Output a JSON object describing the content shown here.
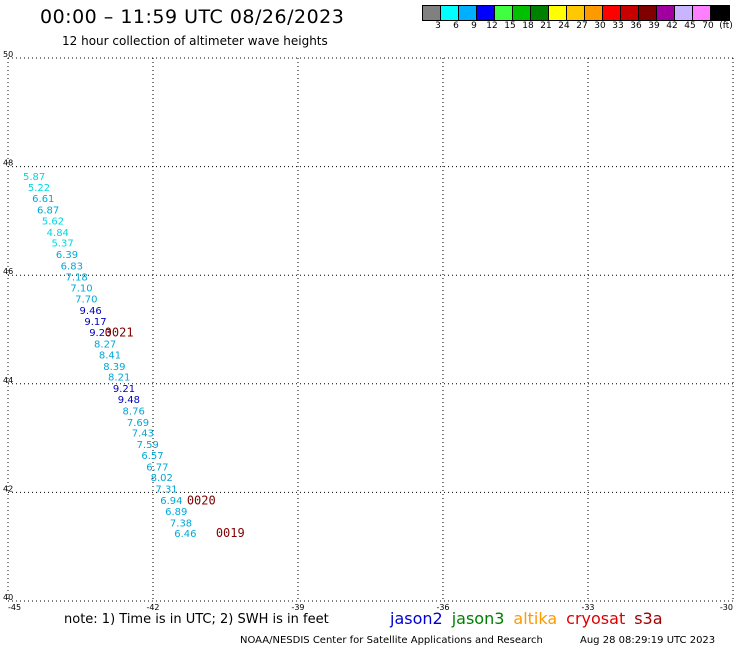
{
  "header": {
    "title": "00:00 – 11:59 UTC 08/26/2023",
    "subtitle": "12 hour collection of altimeter wave heights"
  },
  "legend": {
    "colors": [
      "#808080",
      "#00ffff",
      "#00b0ff",
      "#0000ff",
      "#40ff40",
      "#00c000",
      "#008000",
      "#ffff00",
      "#ffc800",
      "#ff9900",
      "#ff0000",
      "#c80000",
      "#800000",
      "#a000a0",
      "#c8b4ff",
      "#ff80ff",
      "#000000"
    ],
    "labels": [
      "3",
      "6",
      "9",
      "12",
      "15",
      "18",
      "21",
      "24",
      "27",
      "30",
      "33",
      "36",
      "39",
      "42",
      "45",
      "70",
      "(ft)"
    ]
  },
  "map": {
    "lon_range": [
      -45,
      -30
    ],
    "lat_range": [
      40,
      50
    ],
    "lon_ticks": [
      "-45",
      "-42",
      "-39",
      "-36",
      "-33",
      "-30"
    ],
    "lat_ticks": [
      "40",
      "42",
      "44",
      "46",
      "48",
      "50"
    ],
    "grid": "dotted"
  },
  "swh_readings": [
    {
      "lon": -44.69,
      "lat": 47.83,
      "value": "5.87",
      "color": "#00d8e0"
    },
    {
      "lon": -44.59,
      "lat": 47.62,
      "value": "5.22",
      "color": "#00d8e0"
    },
    {
      "lon": -44.5,
      "lat": 47.42,
      "value": "6.61",
      "color": "#00a8d8"
    },
    {
      "lon": -44.4,
      "lat": 47.21,
      "value": "6.87",
      "color": "#00a8d8"
    },
    {
      "lon": -44.3,
      "lat": 47.01,
      "value": "5.62",
      "color": "#00d8e0"
    },
    {
      "lon": -44.2,
      "lat": 46.8,
      "value": "4.84",
      "color": "#00d8e0"
    },
    {
      "lon": -44.1,
      "lat": 46.6,
      "value": "5.37",
      "color": "#00d8e0"
    },
    {
      "lon": -44.01,
      "lat": 46.39,
      "value": "6.39",
      "color": "#00a8d8"
    },
    {
      "lon": -43.91,
      "lat": 46.18,
      "value": "6.83",
      "color": "#00a8d8"
    },
    {
      "lon": -43.81,
      "lat": 45.98,
      "value": "7.18",
      "color": "#00a8d8"
    },
    {
      "lon": -43.71,
      "lat": 45.77,
      "value": "7.10",
      "color": "#00a8d8"
    },
    {
      "lon": -43.61,
      "lat": 45.57,
      "value": "7.70",
      "color": "#00a8d8"
    },
    {
      "lon": -43.52,
      "lat": 45.36,
      "value": "9.46",
      "color": "#0000c0"
    },
    {
      "lon": -43.42,
      "lat": 45.16,
      "value": "9.17",
      "color": "#0000c0"
    },
    {
      "lon": -43.32,
      "lat": 44.95,
      "value": "9.23",
      "color": "#0000c0"
    },
    {
      "lon": -43.22,
      "lat": 44.74,
      "value": "8.27",
      "color": "#00a8d8"
    },
    {
      "lon": -43.12,
      "lat": 44.54,
      "value": "8.41",
      "color": "#00a8d8"
    },
    {
      "lon": -43.03,
      "lat": 44.33,
      "value": "8.39",
      "color": "#00a8d8"
    },
    {
      "lon": -42.93,
      "lat": 44.13,
      "value": "8.21",
      "color": "#00a8d8"
    },
    {
      "lon": -42.83,
      "lat": 43.92,
      "value": "9.21",
      "color": "#0000c0"
    },
    {
      "lon": -42.73,
      "lat": 43.72,
      "value": "9.48",
      "color": "#0000c0"
    },
    {
      "lon": -42.63,
      "lat": 43.51,
      "value": "8.76",
      "color": "#00a8d8"
    },
    {
      "lon": -42.54,
      "lat": 43.3,
      "value": "7.69",
      "color": "#00a8d8"
    },
    {
      "lon": -42.44,
      "lat": 43.1,
      "value": "7.43",
      "color": "#00a8d8"
    },
    {
      "lon": -42.34,
      "lat": 42.89,
      "value": "7.59",
      "color": "#00a8d8"
    },
    {
      "lon": -42.24,
      "lat": 42.69,
      "value": "6.57",
      "color": "#00a8d8"
    },
    {
      "lon": -42.14,
      "lat": 42.48,
      "value": "6.77",
      "color": "#00a8d8"
    },
    {
      "lon": -42.05,
      "lat": 42.28,
      "value": "8.02",
      "color": "#00a8d8"
    },
    {
      "lon": -41.95,
      "lat": 42.07,
      "value": "7.31",
      "color": "#00a8d8"
    },
    {
      "lon": -41.85,
      "lat": 41.86,
      "value": "6.94",
      "color": "#00a8d8"
    },
    {
      "lon": -41.75,
      "lat": 41.66,
      "value": "6.89",
      "color": "#00a8d8"
    },
    {
      "lon": -41.65,
      "lat": 41.45,
      "value": "7.38",
      "color": "#00a8d8"
    },
    {
      "lon": -41.56,
      "lat": 41.25,
      "value": "6.46",
      "color": "#00a8d8"
    }
  ],
  "pass_labels": [
    {
      "lon": -43.0,
      "lat": 44.96,
      "text": "0021"
    },
    {
      "lon": -41.3,
      "lat": 41.87,
      "text": "0020"
    },
    {
      "lon": -40.7,
      "lat": 41.27,
      "text": "0019"
    }
  ],
  "footer": {
    "note": "note:  1) Time is in UTC;  2) SWH is in feet",
    "satellites": [
      {
        "name": "jason2",
        "color": "#0000d0"
      },
      {
        "name": "jason3",
        "color": "#008000"
      },
      {
        "name": "altika",
        "color": "#ff9900"
      },
      {
        "name": "cryosat",
        "color": "#e00000"
      },
      {
        "name": "s3a",
        "color": "#a00000"
      }
    ],
    "credit": "NOAA/NESDIS Center for Satellite Applications and Research",
    "timestamp": "Aug 28 08:29:19 UTC 2023"
  }
}
